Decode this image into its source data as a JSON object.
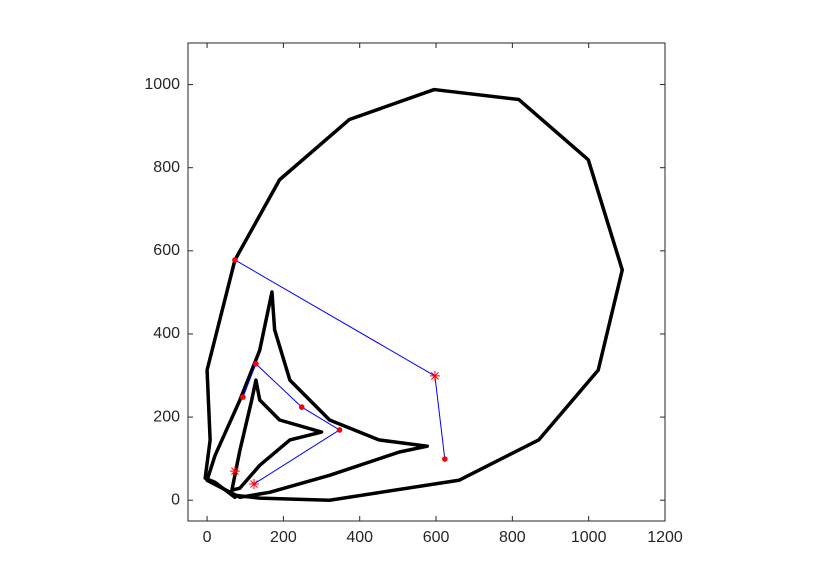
{
  "chart_data": {
    "type": "line",
    "xlim": [
      -50,
      1200
    ],
    "ylim": [
      -50,
      1100
    ],
    "xticks": [
      0,
      200,
      400,
      600,
      800,
      1000,
      1200
    ],
    "yticks": [
      0,
      200,
      400,
      600,
      800,
      1000
    ],
    "box": true,
    "series": [
      {
        "color": "#000000",
        "line": true,
        "width": 3.5,
        "marker": "none",
        "x": [
          73,
          138,
          321,
          660,
          869,
          1025,
          1088,
          999,
          817,
          595,
          373,
          190,
          73,
          0,
          8,
          -5,
          21,
          73
        ],
        "y": [
          12,
          5,
          0,
          48,
          145,
          313,
          554,
          819,
          964,
          988,
          916,
          771,
          578,
          313,
          145,
          53,
          43,
          7
        ]
      },
      {
        "color": "#000000",
        "line": true,
        "width": 3.5,
        "marker": "none",
        "x": [
          0,
          21,
          86,
          138,
          170,
          177,
          217,
          321,
          451,
          577,
          504,
          321,
          164,
          86,
          0
        ],
        "y": [
          48,
          108,
          241,
          361,
          501,
          410,
          289,
          193,
          145,
          130,
          116,
          60,
          19,
          7,
          48
        ]
      },
      {
        "color": "#000000",
        "line": true,
        "width": 3.5,
        "marker": "none",
        "x": [
          65,
          86,
          117,
          128,
          138,
          190,
          300,
          217,
          138,
          86,
          65
        ],
        "y": [
          24,
          120,
          241,
          289,
          241,
          193,
          164,
          145,
          84,
          29,
          24
        ]
      },
      {
        "color": "#0000ff",
        "line": true,
        "width": 1,
        "marker_color": "#ff0000",
        "markers": [
          "dot",
          "star",
          "dot"
        ],
        "x": [
          73,
          597,
          623
        ],
        "y": [
          578,
          299,
          99
        ]
      },
      {
        "color": "#0000ff",
        "line": true,
        "width": 1,
        "marker_color": "#ff0000",
        "markers": [
          "dot",
          "dot",
          "dot",
          "dot",
          "star"
        ],
        "x": [
          94,
          128,
          248,
          347,
          123
        ],
        "y": [
          248,
          328,
          224,
          169,
          39
        ]
      },
      {
        "color": "#0000ff",
        "line": false,
        "width": 1,
        "marker_color": "#ff0000",
        "markers": [
          "star"
        ],
        "x": [
          73
        ],
        "y": [
          70
        ]
      }
    ]
  }
}
